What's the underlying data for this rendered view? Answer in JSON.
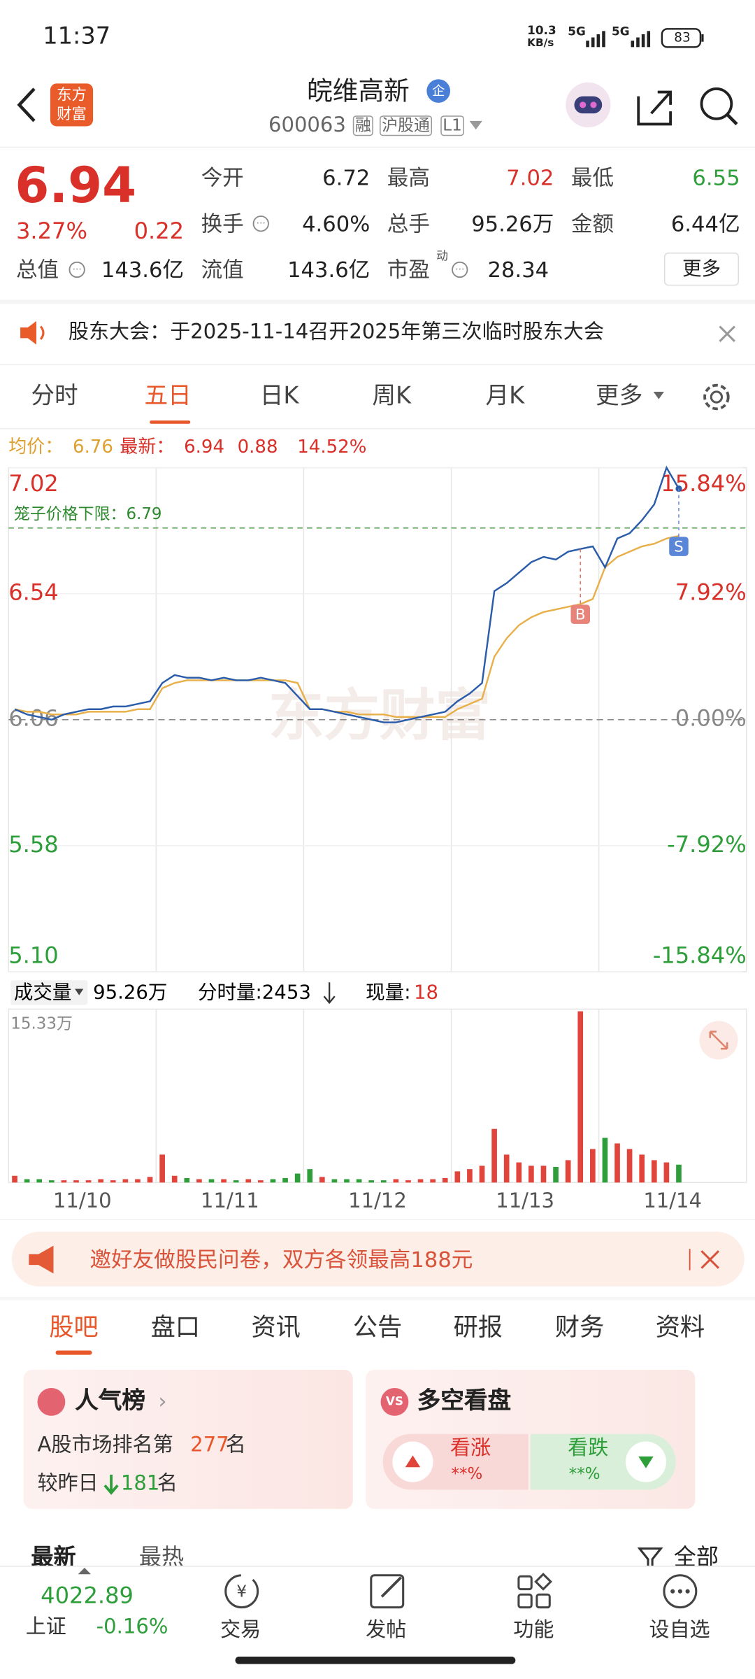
{
  "status": {
    "time": "11:37",
    "net": "10.3",
    "net_unit": "KB/s",
    "sim1": "5G",
    "sim2": "5G",
    "battery": "83"
  },
  "header": {
    "logo": "东方财富",
    "name": "皖维高新",
    "badge": "企",
    "code": "600063",
    "tags": [
      "融",
      "沪股通",
      "L1"
    ]
  },
  "quote": {
    "price": "6.94",
    "pct": "3.27%",
    "change": "0.22",
    "fields": [
      {
        "label": "今开",
        "value": "6.72"
      },
      {
        "label": "最高",
        "value": "7.02"
      },
      {
        "label": "最低",
        "value": "6.55"
      },
      {
        "label": "换手",
        "value": "4.60%"
      },
      {
        "label": "总手",
        "value": "95.26万"
      },
      {
        "label": "金额",
        "value": "6.44亿"
      },
      {
        "label": "总值",
        "value": "143.6亿"
      },
      {
        "label": "流值",
        "value": "143.6亿"
      },
      {
        "label": "市盈",
        "sup": "动",
        "value": "28.34"
      }
    ],
    "more": "更多"
  },
  "notice": "股东大会：于2025-11-14召开2025年第三次临时股东大会",
  "tabs": [
    "分时",
    "五日",
    "日K",
    "周K",
    "月K",
    "更多"
  ],
  "info": {
    "avg_label": "均价：",
    "avg": "6.76",
    "last_label": "最新：",
    "last": "6.94",
    "chg": "0.88",
    "pct": "14.52%"
  },
  "chart": {
    "watermark": "东方财富",
    "ylim": [
      5.1,
      7.02
    ],
    "yticks": [
      7.02,
      6.54,
      6.06,
      5.58,
      {
        "value": 5.1,
        "label": "5.10"
      }
    ],
    "y2lim": [
      -15.84,
      15.84
    ],
    "y2ticks": [
      {
        "value": 15.84,
        "label": "15.84%"
      },
      {
        "value": 7.92,
        "label": "7.92%"
      },
      {
        "value": 0,
        "label": "0.00%"
      },
      {
        "value": -7.92,
        "label": "-7.92%"
      },
      {
        "value": -15.84,
        "label": "-15.84%"
      }
    ],
    "limit_label": "笼子价格下限：",
    "limit": 6.79,
    "markers": [
      "B",
      "S"
    ],
    "price": [
      6.1,
      6.08,
      6.07,
      6.06,
      6.08,
      6.09,
      6.1,
      6.1,
      6.11,
      6.11,
      6.12,
      6.13,
      6.2,
      6.23,
      6.22,
      6.22,
      6.21,
      6.22,
      6.21,
      6.21,
      6.22,
      6.21,
      6.2,
      6.15,
      6.1,
      6.1,
      6.09,
      6.08,
      6.07,
      6.06,
      6.05,
      6.05,
      6.06,
      6.07,
      6.08,
      6.09,
      6.13,
      6.16,
      6.2,
      6.55,
      6.58,
      6.62,
      6.66,
      6.68,
      6.67,
      6.7,
      6.71,
      6.72,
      6.64,
      6.75,
      6.77,
      6.82,
      6.88,
      7.02,
      6.94
    ],
    "avg": [
      6.1,
      6.09,
      6.09,
      6.08,
      6.08,
      6.08,
      6.09,
      6.09,
      6.09,
      6.09,
      6.1,
      6.1,
      6.18,
      6.2,
      6.21,
      6.21,
      6.21,
      6.21,
      6.21,
      6.21,
      6.21,
      6.21,
      6.21,
      6.2,
      6.1,
      6.1,
      6.09,
      6.09,
      6.08,
      6.08,
      6.08,
      6.07,
      6.07,
      6.07,
      6.07,
      6.07,
      6.1,
      6.12,
      6.14,
      6.3,
      6.37,
      6.42,
      6.45,
      6.47,
      6.48,
      6.49,
      6.5,
      6.52,
      6.64,
      6.68,
      6.7,
      6.72,
      6.73,
      6.75,
      6.76
    ],
    "volume_label": "成交量",
    "volume_total": "95.26万",
    "minute_vol": "分时量:2453",
    "cur_label": "现量:",
    "cur": "18",
    "vlim": [
      0,
      15.33
    ],
    "vmax_label": "15.33万",
    "volume": [
      0.6,
      0.3,
      0.3,
      0.2,
      0.2,
      0.2,
      0.2,
      0.3,
      0.2,
      0.3,
      0.3,
      0.5,
      2.5,
      0.6,
      0.4,
      0.3,
      0.3,
      0.3,
      0.2,
      0.3,
      0.2,
      0.3,
      0.4,
      0.8,
      1.2,
      0.5,
      0.3,
      0.3,
      0.3,
      0.2,
      0.2,
      0.3,
      0.2,
      0.3,
      0.3,
      0.4,
      1.0,
      1.2,
      1.5,
      4.8,
      2.5,
      1.8,
      1.5,
      1.5,
      1.4,
      2.0,
      15.33,
      3.0,
      4.0,
      3.5,
      3.0,
      2.5,
      2.0,
      1.8,
      1.6
    ],
    "days": [
      "11/10",
      "11/11",
      "11/12",
      "11/13",
      "11/14"
    ]
  },
  "banner": "邀好友做股民问卷，双方各领最高188元",
  "sections": [
    "股吧",
    "盘口",
    "资讯",
    "公告",
    "研报",
    "财务",
    "资料"
  ],
  "cards": {
    "rank_title": "人气榜",
    "rank_pre": "A股市场排名第",
    "rank": "277",
    "rank_post": "名",
    "diff_pre": "较昨日",
    "diff": "181",
    "diff_post": "名",
    "vote_title": "多空看盘",
    "up": "看涨",
    "up_pct": "**%",
    "down": "看跌",
    "down_pct": "**%"
  },
  "filter": {
    "latest": "最新",
    "hot": "最热",
    "all": "全部"
  },
  "bottom": {
    "index": "4022.89",
    "market": "上证",
    "index_pct": "-0.16%",
    "items": [
      "交易",
      "发帖",
      "功能",
      "设自选"
    ]
  }
}
